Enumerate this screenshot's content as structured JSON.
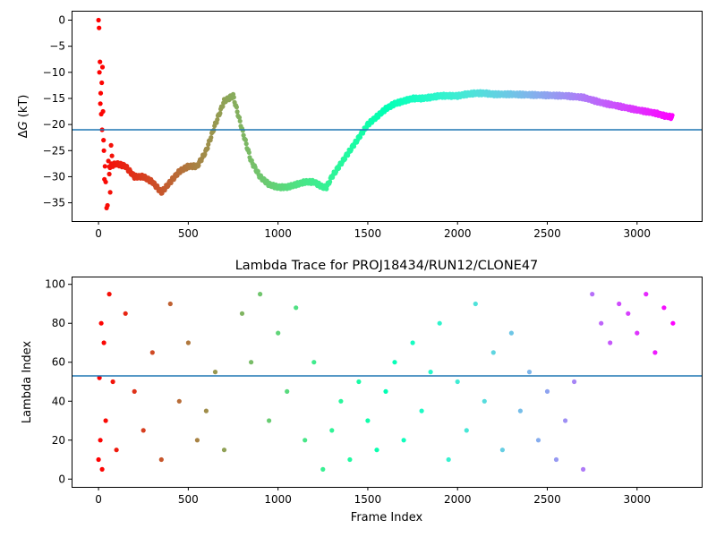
{
  "chart_data": [
    {
      "type": "scatter",
      "title": "",
      "xlabel": "",
      "ylabel": "ΔG (kT)",
      "ylabel_parts": {
        "delta": "Δ",
        "var": "G",
        "unit": " (kT)"
      },
      "xlim": [
        -150,
        3360
      ],
      "ylim": [
        -38.5,
        1.8
      ],
      "xticks": [
        "0",
        "500",
        "1000",
        "1500",
        "2000",
        "2500",
        "3000"
      ],
      "xtick_values": [
        0,
        500,
        1000,
        1500,
        2000,
        2500,
        3000
      ],
      "yticks": [
        "0",
        "−5",
        "−10",
        "−15",
        "−20",
        "−25",
        "−30",
        "−35"
      ],
      "ytick_values": [
        0,
        -5,
        -10,
        -15,
        -20,
        -25,
        -30,
        -35
      ],
      "hline": -21,
      "hline_color": "#1f77b4",
      "colormap": "rainbow",
      "grid": false,
      "series": [
        {
          "name": "",
          "style": "points",
          "x": [
            0,
            3,
            5,
            8,
            10,
            12,
            15,
            18,
            20,
            22,
            25,
            28,
            30,
            33,
            36,
            40,
            45,
            50,
            55,
            60,
            65,
            70,
            75,
            80
          ],
          "y": [
            0,
            -1.5,
            -10,
            -8,
            -16,
            -14,
            -18,
            -12,
            -21,
            -9,
            -17.5,
            -23,
            -25,
            -30.5,
            -28,
            -31,
            -36,
            -35.5,
            -27,
            -29.5,
            -33,
            -24,
            -26,
            -28
          ]
        },
        {
          "name": "",
          "style": "trace",
          "x": [
            60,
            100,
            150,
            200,
            250,
            300,
            350,
            400,
            450,
            500,
            550,
            600,
            650,
            700,
            750,
            800,
            850,
            900,
            950,
            1000,
            1050,
            1100,
            1150,
            1200,
            1250,
            1270,
            1300,
            1350,
            1400,
            1450,
            1500,
            1550,
            1600,
            1650,
            1700,
            1750,
            1800,
            1850,
            1900,
            1950,
            2000,
            2050,
            2100,
            2150,
            2200,
            2300,
            2400,
            2500,
            2600,
            2700,
            2800,
            2900,
            3000,
            3100,
            3150,
            3200
          ],
          "y": [
            -28,
            -27.5,
            -28,
            -30,
            -30,
            -31,
            -33,
            -31,
            -29,
            -28,
            -28,
            -25,
            -20,
            -15.5,
            -14.5,
            -21,
            -27,
            -30,
            -31.5,
            -32,
            -32,
            -31.5,
            -31,
            -31,
            -32,
            -32,
            -30,
            -27.5,
            -25,
            -22.5,
            -20,
            -18.5,
            -17,
            -16,
            -15.5,
            -15,
            -15,
            -14.8,
            -14.5,
            -14.5,
            -14.5,
            -14.2,
            -14,
            -14,
            -14.2,
            -14.2,
            -14.3,
            -14.4,
            -14.5,
            -14.8,
            -15.8,
            -16.5,
            -17.2,
            -17.8,
            -18.3,
            -18.6
          ]
        }
      ]
    },
    {
      "type": "scatter",
      "title": "Lambda Trace for PROJ18434/RUN12/CLONE47",
      "xlabel": "Frame Index",
      "ylabel": "Lambda Index",
      "xlim": [
        -150,
        3360
      ],
      "ylim": [
        -4,
        104
      ],
      "xticks": [
        "0",
        "500",
        "1000",
        "1500",
        "2000",
        "2500",
        "3000"
      ],
      "xtick_values": [
        0,
        500,
        1000,
        1500,
        2000,
        2500,
        3000
      ],
      "yticks": [
        "0",
        "20",
        "40",
        "60",
        "80",
        "100"
      ],
      "ytick_values": [
        0,
        20,
        40,
        60,
        80,
        100
      ],
      "hline": 53,
      "hline_color": "#1f77b4",
      "colormap": "rainbow",
      "grid": false,
      "series": [
        {
          "name": "",
          "style": "points",
          "x": [
            0,
            5,
            10,
            15,
            20,
            30,
            40,
            60,
            80,
            100,
            150,
            200,
            250,
            300,
            350,
            400,
            450,
            500,
            550,
            600,
            650,
            700,
            800,
            850,
            900,
            950,
            1000,
            1050,
            1100,
            1150,
            1200,
            1250,
            1300,
            1350,
            1400,
            1450,
            1500,
            1550,
            1600,
            1650,
            1700,
            1750,
            1800,
            1850,
            1900,
            1950,
            2000,
            2050,
            2100,
            2150,
            2200,
            2250,
            2300,
            2350,
            2400,
            2450,
            2500,
            2550,
            2600,
            2650,
            2700,
            2750,
            2800,
            2850,
            2900,
            2950,
            3000,
            3050,
            3100,
            3150,
            3200
          ],
          "y": [
            10,
            52,
            20,
            80,
            5,
            70,
            30,
            95,
            50,
            15,
            85,
            45,
            25,
            65,
            10,
            90,
            40,
            70,
            20,
            35,
            55,
            15,
            85,
            60,
            95,
            30,
            75,
            45,
            88,
            20,
            60,
            5,
            25,
            40,
            10,
            50,
            30,
            15,
            45,
            60,
            20,
            70,
            35,
            55,
            80,
            10,
            50,
            25,
            90,
            40,
            65,
            15,
            75,
            35,
            55,
            20,
            45,
            10,
            30,
            50,
            5,
            95,
            80,
            70,
            90,
            85,
            75,
            95,
            65,
            88,
            80
          ]
        }
      ]
    }
  ]
}
